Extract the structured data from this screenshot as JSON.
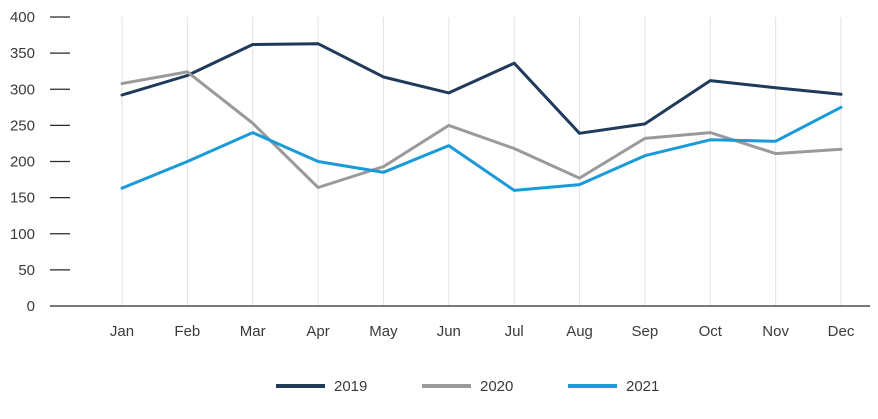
{
  "chart_data": {
    "type": "line",
    "title": "",
    "xlabel": "",
    "ylabel": "",
    "categories": [
      "Jan",
      "Feb",
      "Mar",
      "Apr",
      "May",
      "Jun",
      "Jul",
      "Aug",
      "Sep",
      "Oct",
      "Nov",
      "Dec"
    ],
    "ylim": [
      0,
      400
    ],
    "yticks": [
      "0",
      "50",
      "100",
      "150",
      "200",
      "250",
      "300",
      "350",
      "400"
    ],
    "grid": "vertical",
    "legend_position": "bottom-center",
    "series": [
      {
        "name": "2019",
        "color": "#1f3a5a",
        "values": [
          292,
          319,
          362,
          363,
          317,
          295,
          336,
          239,
          252,
          312,
          302,
          293
        ]
      },
      {
        "name": "2020",
        "color": "#9a9a9a",
        "values": [
          308,
          324,
          253,
          164,
          193,
          250,
          218,
          177,
          232,
          240,
          211,
          217
        ]
      },
      {
        "name": "2021",
        "color": "#1a9bd7",
        "values": [
          163,
          200,
          240,
          200,
          185,
          222,
          160,
          168,
          208,
          230,
          228,
          275
        ]
      }
    ]
  }
}
